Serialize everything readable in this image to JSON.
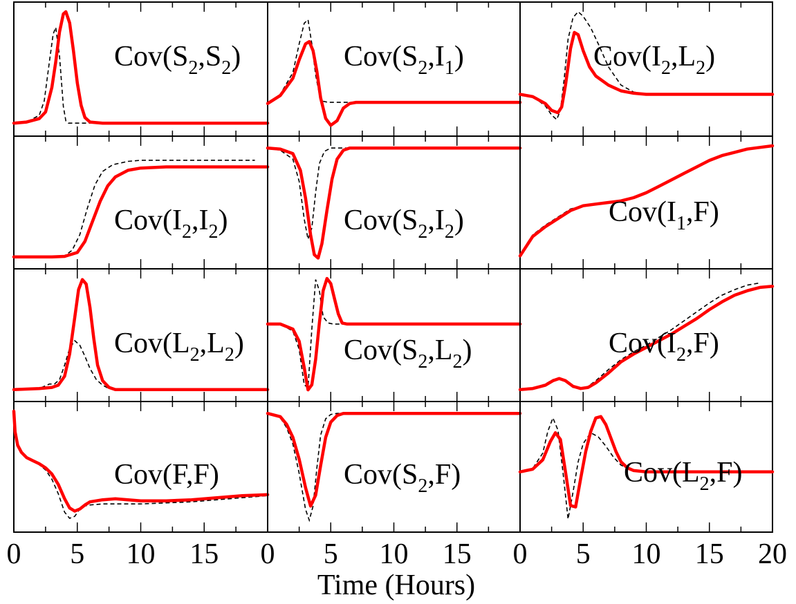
{
  "chart_data": {
    "type": "line",
    "layout": "grid 4 rows x 3 columns, shared x axis per column",
    "xlabel": "Time (Hours)",
    "x_tick_labels": {
      "col0": [
        "0",
        "5",
        "10",
        "15"
      ],
      "col1": [
        "0",
        "5",
        "10",
        "15"
      ],
      "col2": [
        "0",
        "5",
        "10",
        "15",
        "20"
      ]
    },
    "xlim": [
      0,
      20
    ],
    "yaxis": "no tick labels, curves normalized per panel",
    "colors": {
      "red": "#ff0000",
      "dashed": "#000000"
    },
    "panels": [
      {
        "title": "Cov(S2,S2)",
        "title_parts": [
          "Cov(S",
          "2",
          ",S",
          "2",
          ")"
        ],
        "red": {
          "x": [
            0,
            1,
            2,
            2.5,
            3,
            3.3,
            3.6,
            3.9,
            4.1,
            4.4,
            4.7,
            5,
            5.3,
            5.6,
            6,
            7,
            8,
            20
          ],
          "y": [
            0,
            0.01,
            0.04,
            0.1,
            0.32,
            0.55,
            0.82,
            0.98,
            1.0,
            0.9,
            0.65,
            0.36,
            0.16,
            0.05,
            0.01,
            0,
            0,
            0
          ]
        },
        "dashed": {
          "x": [
            0,
            1,
            2,
            2.4,
            2.8,
            3.1,
            3.3,
            3.6,
            3.9,
            4.1,
            4.3,
            20
          ],
          "y": [
            0,
            0.01,
            0.07,
            0.2,
            0.55,
            0.8,
            0.86,
            0.6,
            0.15,
            0.02,
            0,
            0
          ]
        }
      },
      {
        "title": "Cov(S2,I1)",
        "title_parts": [
          "Cov(S",
          "2",
          ",I",
          "1",
          ")"
        ],
        "red": {
          "x": [
            0,
            1,
            2,
            2.5,
            3,
            3.3,
            3.6,
            3.9,
            4.2,
            4.6,
            5,
            5.5,
            6,
            6.5,
            7,
            8,
            20
          ],
          "y": [
            0.2,
            0.27,
            0.42,
            0.58,
            0.72,
            0.74,
            0.66,
            0.48,
            0.25,
            0.07,
            0.01,
            0.05,
            0.16,
            0.2,
            0.21,
            0.21,
            0.21
          ]
        },
        "dashed": {
          "x": [
            0,
            1,
            2,
            2.5,
            2.9,
            3.2,
            3.5,
            3.8,
            4.1,
            4.4,
            4.8,
            5.2,
            6,
            20
          ],
          "y": [
            0.2,
            0.28,
            0.47,
            0.72,
            0.9,
            0.93,
            0.72,
            0.45,
            0.28,
            0.22,
            0.21,
            0.21,
            0.21,
            0.21
          ]
        }
      },
      {
        "title": "Cov(I2,L2)",
        "title_parts": [
          "Cov(I",
          "2",
          ",L",
          "2",
          ")"
        ],
        "red": {
          "x": [
            0,
            1,
            2,
            2.5,
            3,
            3.3,
            3.6,
            4,
            4.3,
            4.6,
            5,
            5.5,
            6,
            7,
            8,
            9,
            10,
            12,
            20
          ],
          "y": [
            0.28,
            0.26,
            0.2,
            0.14,
            0.12,
            0.17,
            0.36,
            0.68,
            0.82,
            0.8,
            0.66,
            0.52,
            0.44,
            0.36,
            0.31,
            0.29,
            0.28,
            0.28,
            0.28
          ]
        },
        "dashed": {
          "x": [
            0,
            1,
            2,
            2.5,
            2.9,
            3.2,
            3.5,
            3.8,
            4.2,
            4.6,
            5,
            5.6,
            6.2,
            7,
            8,
            9,
            10,
            20
          ],
          "y": [
            0.28,
            0.26,
            0.18,
            0.1,
            0.06,
            0.14,
            0.42,
            0.76,
            0.95,
            1.0,
            0.96,
            0.86,
            0.72,
            0.52,
            0.36,
            0.3,
            0.28,
            0.28
          ]
        }
      },
      {
        "title": "Cov(I2,I2)",
        "title_parts": [
          "Cov(I",
          "2",
          ",I",
          "2",
          ")"
        ],
        "red": {
          "x": [
            0,
            3,
            4,
            5,
            5.6,
            6.2,
            6.8,
            7.4,
            8,
            9,
            10,
            12,
            14,
            16,
            18,
            20
          ],
          "y": [
            0,
            0,
            0.005,
            0.04,
            0.14,
            0.32,
            0.5,
            0.64,
            0.72,
            0.78,
            0.8,
            0.81,
            0.81,
            0.81,
            0.81,
            0.81
          ]
        },
        "dashed": {
          "x": [
            0,
            3,
            4,
            4.6,
            5.2,
            5.8,
            6.4,
            7,
            7.8,
            9,
            10,
            12,
            14,
            16,
            18,
            19
          ],
          "y": [
            0,
            0,
            0.01,
            0.06,
            0.2,
            0.44,
            0.65,
            0.77,
            0.83,
            0.86,
            0.87,
            0.87,
            0.87,
            0.87,
            0.87,
            0.87
          ]
        }
      },
      {
        "title": "Cov(S2,I2)",
        "title_parts": [
          "Cov(S",
          "2",
          ",I",
          "2",
          ")"
        ],
        "red": {
          "x": [
            0,
            1,
            2,
            2.6,
            3,
            3.4,
            3.7,
            4,
            4.3,
            4.7,
            5.1,
            5.5,
            6,
            6.5,
            7,
            8,
            20
          ],
          "y": [
            0,
            -0.01,
            -0.05,
            -0.2,
            -0.45,
            -0.78,
            -0.96,
            -0.99,
            -0.86,
            -0.56,
            -0.28,
            -0.1,
            -0.02,
            0,
            0,
            0,
            0
          ]
        },
        "dashed": {
          "x": [
            0,
            1,
            2,
            2.5,
            2.9,
            3.2,
            3.5,
            3.8,
            4.1,
            4.5,
            5,
            5.5,
            6,
            20
          ],
          "y": [
            0,
            -0.02,
            -0.1,
            -0.3,
            -0.64,
            -0.82,
            -0.72,
            -0.4,
            -0.14,
            -0.03,
            0,
            0,
            0,
            0
          ]
        }
      },
      {
        "title": "Cov(I1,F)",
        "title_parts": [
          "Cov(I",
          "1",
          ",F)"
        ],
        "red": {
          "x": [
            0,
            0.5,
            1,
            2,
            3,
            4,
            5,
            6,
            7,
            8,
            9,
            10,
            11,
            12,
            13,
            14,
            15,
            16,
            17,
            18,
            19,
            20
          ],
          "y": [
            -0.68,
            -0.62,
            -0.56,
            -0.5,
            -0.45,
            -0.4,
            -0.37,
            -0.36,
            -0.35,
            -0.34,
            -0.32,
            -0.29,
            -0.25,
            -0.21,
            -0.17,
            -0.13,
            -0.09,
            -0.06,
            -0.04,
            -0.02,
            -0.01,
            0
          ]
        },
        "dashed": {
          "x": [
            0,
            0.5,
            1,
            2,
            3,
            4,
            5,
            6,
            7,
            8,
            9,
            10,
            11,
            12,
            13,
            14,
            15,
            16,
            17,
            18,
            19,
            20
          ],
          "y": [
            -0.68,
            -0.61,
            -0.55,
            -0.49,
            -0.44,
            -0.39,
            -0.37,
            -0.36,
            -0.35,
            -0.34,
            -0.32,
            -0.29,
            -0.25,
            -0.21,
            -0.17,
            -0.13,
            -0.09,
            -0.06,
            -0.04,
            -0.02,
            -0.01,
            0
          ]
        }
      },
      {
        "title": "Cov(L2,L2)",
        "title_parts": [
          "Cov(L",
          "2",
          ",L",
          "2",
          ")"
        ],
        "red": {
          "x": [
            0,
            2,
            3,
            3.5,
            4,
            4.4,
            4.8,
            5.1,
            5.4,
            5.7,
            6,
            6.3,
            6.6,
            7,
            7.5,
            8,
            9,
            20
          ],
          "y": [
            0,
            0.01,
            0.02,
            0.04,
            0.12,
            0.32,
            0.65,
            0.9,
            0.99,
            0.95,
            0.74,
            0.46,
            0.22,
            0.08,
            0.02,
            0,
            0,
            0
          ]
        },
        "dashed": {
          "x": [
            0,
            2,
            2.8,
            3.2,
            3.6,
            4,
            4.4,
            4.8,
            5.2,
            5.6,
            6,
            6.5,
            7,
            7.5,
            8,
            9,
            20
          ],
          "y": [
            0,
            0.01,
            0.05,
            0.05,
            0.09,
            0.22,
            0.37,
            0.44,
            0.4,
            0.3,
            0.19,
            0.09,
            0.04,
            0.01,
            0,
            0,
            0
          ]
        }
      },
      {
        "title": "Cov(S2,L2)",
        "title_parts": [
          "Cov(S",
          "2",
          ",L",
          "2",
          ")"
        ],
        "red": {
          "x": [
            0,
            1,
            2,
            2.5,
            2.9,
            3.2,
            3.5,
            3.8,
            4.1,
            4.4,
            4.7,
            5,
            5.3,
            5.6,
            5.9,
            6.3,
            7,
            8,
            20
          ],
          "y": [
            0.55,
            0.55,
            0.5,
            0.38,
            0.12,
            -0.1,
            -0.05,
            0.2,
            0.56,
            0.88,
            1.0,
            0.95,
            0.8,
            0.65,
            0.56,
            0.55,
            0.55,
            0.55,
            0.55
          ]
        },
        "dashed": {
          "x": [
            0,
            1,
            2,
            2.5,
            2.9,
            3.2,
            3.5,
            3.8,
            4.1,
            4.4,
            4.8,
            5.2,
            6,
            7,
            20
          ],
          "y": [
            0.55,
            0.55,
            0.48,
            0.3,
            -0.05,
            -0.08,
            0.5,
            0.99,
            0.88,
            0.62,
            0.56,
            0.55,
            0.55,
            0.55,
            0.55
          ]
        }
      },
      {
        "title": "Cov(I2,F)",
        "title_parts": [
          "Cov(I",
          "2",
          ",F)"
        ],
        "red": {
          "x": [
            0,
            1,
            2,
            2.6,
            3.1,
            3.6,
            4.2,
            4.8,
            5.4,
            6,
            7,
            8,
            9,
            10,
            11,
            12,
            13,
            14,
            15,
            16,
            17,
            18,
            19,
            20
          ],
          "y": [
            0,
            0.01,
            0.04,
            0.08,
            0.1,
            0.08,
            0.03,
            0.01,
            0.02,
            0.06,
            0.15,
            0.25,
            0.32,
            0.38,
            0.44,
            0.5,
            0.57,
            0.64,
            0.72,
            0.79,
            0.85,
            0.89,
            0.92,
            0.93
          ]
        },
        "dashed": {
          "x": [
            0,
            1,
            2,
            2.6,
            3.1,
            3.6,
            4.2,
            4.8,
            5.4,
            6,
            7,
            8,
            9,
            10,
            11,
            12,
            13,
            14,
            15,
            16,
            17,
            18,
            19
          ],
          "y": [
            0,
            0.01,
            0.05,
            0.09,
            0.1,
            0.07,
            0.02,
            0.01,
            0.03,
            0.08,
            0.18,
            0.27,
            0.34,
            0.4,
            0.47,
            0.54,
            0.62,
            0.7,
            0.78,
            0.85,
            0.9,
            0.94,
            0.96
          ]
        }
      },
      {
        "title": "Cov(F,F)",
        "title_parts": [
          "Cov(F,F)"
        ],
        "red": {
          "x": [
            0,
            0.1,
            0.3,
            0.6,
            1,
            1.5,
            2,
            2.5,
            3,
            3.5,
            4,
            4.4,
            4.8,
            5.2,
            5.6,
            6,
            7,
            8,
            9,
            10,
            12,
            14,
            16,
            18,
            20
          ],
          "y": [
            1.0,
            0.8,
            0.67,
            0.6,
            0.55,
            0.52,
            0.49,
            0.45,
            0.39,
            0.29,
            0.15,
            0.06,
            0.03,
            0.05,
            0.09,
            0.12,
            0.14,
            0.15,
            0.14,
            0.13,
            0.13,
            0.14,
            0.16,
            0.18,
            0.19
          ]
        },
        "dashed": {
          "x": [
            0,
            0.1,
            0.3,
            0.6,
            1,
            1.5,
            2,
            2.5,
            3,
            3.5,
            4,
            4.4,
            4.8,
            5.2,
            5.6,
            6,
            7,
            8,
            10,
            12,
            14,
            16,
            18,
            20
          ],
          "y": [
            1.0,
            0.8,
            0.67,
            0.6,
            0.55,
            0.52,
            0.48,
            0.43,
            0.34,
            0.2,
            0.02,
            -0.04,
            -0.02,
            0.05,
            0.08,
            0.09,
            0.1,
            0.1,
            0.1,
            0.11,
            0.12,
            0.14,
            0.16,
            0.18
          ]
        }
      },
      {
        "title": "Cov(S2,F)",
        "title_parts": [
          "Cov(S",
          "2",
          ",F)"
        ],
        "red": {
          "x": [
            0,
            1,
            1.5,
            2,
            2.5,
            3,
            3.4,
            3.8,
            4.2,
            4.6,
            5,
            5.5,
            6,
            7,
            8,
            20
          ],
          "y": [
            0,
            -0.03,
            -0.1,
            -0.22,
            -0.42,
            -0.68,
            -0.85,
            -0.75,
            -0.48,
            -0.22,
            -0.08,
            -0.02,
            0,
            0,
            0,
            0
          ]
        },
        "dashed": {
          "x": [
            0,
            1,
            1.5,
            2,
            2.5,
            3,
            3.3,
            3.6,
            3.9,
            4.2,
            4.6,
            5,
            5.5,
            6,
            20
          ],
          "y": [
            0,
            -0.04,
            -0.13,
            -0.28,
            -0.55,
            -0.88,
            -0.98,
            -0.85,
            -0.5,
            -0.2,
            -0.05,
            -0.01,
            0,
            0,
            0
          ]
        }
      },
      {
        "title": "Cov(L2,F)",
        "title_parts": [
          "Cov(L",
          "2",
          ",F)"
        ],
        "red": {
          "x": [
            0,
            1,
            1.8,
            2.4,
            2.8,
            3.2,
            3.6,
            4,
            4.4,
            4.8,
            5.2,
            5.6,
            6,
            6.4,
            6.8,
            7.2,
            7.6,
            8,
            8.5,
            9,
            10,
            12,
            20
          ],
          "y": [
            0,
            0.04,
            0.18,
            0.45,
            0.58,
            0.48,
            0.0,
            -0.5,
            -0.52,
            -0.1,
            0.3,
            0.6,
            0.8,
            0.82,
            0.7,
            0.5,
            0.3,
            0.15,
            0.06,
            0.02,
            0,
            0,
            0
          ]
        },
        "dashed": {
          "x": [
            0,
            1,
            1.8,
            2.2,
            2.6,
            3,
            3.4,
            3.8,
            4.2,
            4.6,
            5,
            5.6,
            6.2,
            6.8,
            7.4,
            8,
            8.8,
            10,
            12,
            20
          ],
          "y": [
            0,
            0.05,
            0.28,
            0.6,
            0.8,
            0.62,
            0.0,
            -0.7,
            -0.3,
            0.15,
            0.42,
            0.58,
            0.52,
            0.38,
            0.22,
            0.1,
            0.03,
            0,
            0,
            0
          ]
        }
      }
    ]
  }
}
